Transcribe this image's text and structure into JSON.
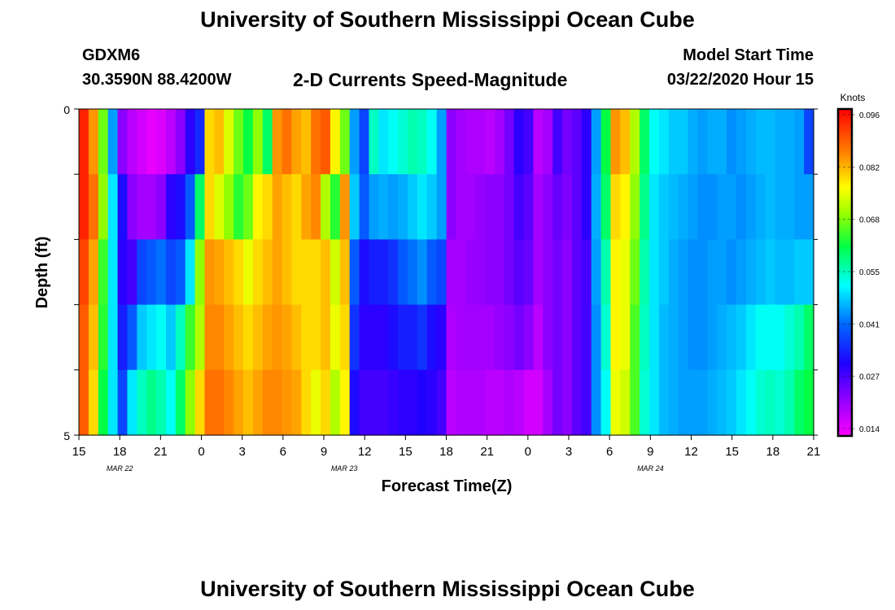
{
  "page": {
    "title_top": "University of Southern Mississippi Ocean Cube",
    "title_bottom": "University of Southern Mississippi Ocean Cube",
    "station": "GDXM6",
    "location": "30.3590N 88.4200W",
    "chart_title": "2-D Currents Speed-Magnitude",
    "model_start_label": "Model Start Time",
    "model_start_value": "03/22/2020 Hour 15"
  },
  "chart_data": {
    "type": "heatmap",
    "title": "2-D Currents Speed-Magnitude",
    "xlabel": "Forecast Time(Z)",
    "ylabel": "Depth (ft)",
    "x_ticks": [
      "15",
      "18",
      "21",
      "0",
      "3",
      "6",
      "9",
      "12",
      "15",
      "18",
      "21",
      "0",
      "3",
      "6",
      "9",
      "12",
      "15",
      "18",
      "21"
    ],
    "date_labels": [
      {
        "text": "MAR  22",
        "at_tick": 1
      },
      {
        "text": "MAR  23",
        "at_tick": 6.5
      },
      {
        "text": "MAR  24",
        "at_tick": 14
      }
    ],
    "y_ticks": [
      "0",
      "5"
    ],
    "ylim": [
      0,
      5
    ],
    "hours": 54,
    "depth_levels": [
      0,
      1,
      2,
      3,
      4,
      5
    ],
    "colorbar": {
      "label": "Knots",
      "ticks": [
        "0.096",
        "0.082",
        "0.068",
        "0.055",
        "0.041",
        "0.027",
        "0.014"
      ],
      "min": 0.012,
      "max": 0.098
    },
    "profile_by_depth": [
      {
        "depth": 0,
        "values": [
          0.095,
          0.085,
          0.068,
          0.045,
          0.022,
          0.018,
          0.016,
          0.014,
          0.015,
          0.018,
          0.022,
          0.03,
          0.035,
          0.08,
          0.082,
          0.075,
          0.068,
          0.062,
          0.07,
          0.06,
          0.085,
          0.088,
          0.084,
          0.082,
          0.088,
          0.09,
          0.078,
          0.068,
          0.045,
          0.038,
          0.055,
          0.05,
          0.052,
          0.054,
          0.056,
          0.055,
          0.052,
          0.045,
          0.022,
          0.02,
          0.019,
          0.019,
          0.018,
          0.02,
          0.024,
          0.03,
          0.028,
          0.018,
          0.02,
          0.028,
          0.024,
          0.026,
          0.03,
          0.045,
          0.062,
          0.085,
          0.082,
          0.072,
          0.06,
          0.052,
          0.05,
          0.048,
          0.048,
          0.046,
          0.045,
          0.046,
          0.046,
          0.044,
          0.045,
          0.046,
          0.047,
          0.047,
          0.046,
          0.046,
          0.045,
          0.038
        ]
      },
      {
        "depth": 1,
        "values": [
          0.095,
          0.088,
          0.07,
          0.05,
          0.032,
          0.022,
          0.02,
          0.02,
          0.022,
          0.03,
          0.032,
          0.04,
          0.06,
          0.08,
          0.075,
          0.07,
          0.064,
          0.068,
          0.078,
          0.08,
          0.084,
          0.082,
          0.08,
          0.084,
          0.086,
          0.072,
          0.064,
          0.085,
          0.048,
          0.04,
          0.045,
          0.046,
          0.045,
          0.046,
          0.048,
          0.05,
          0.048,
          0.045,
          0.022,
          0.02,
          0.02,
          0.021,
          0.022,
          0.022,
          0.024,
          0.028,
          0.026,
          0.02,
          0.022,
          0.025,
          0.023,
          0.026,
          0.03,
          0.046,
          0.06,
          0.08,
          0.078,
          0.07,
          0.058,
          0.05,
          0.048,
          0.047,
          0.046,
          0.045,
          0.044,
          0.044,
          0.045,
          0.045,
          0.044,
          0.045,
          0.046,
          0.047,
          0.046,
          0.046,
          0.045,
          0.045
        ]
      },
      {
        "depth": 2,
        "values": [
          0.092,
          0.084,
          0.065,
          0.05,
          0.03,
          0.028,
          0.038,
          0.04,
          0.042,
          0.038,
          0.04,
          0.05,
          0.07,
          0.085,
          0.084,
          0.082,
          0.08,
          0.076,
          0.08,
          0.082,
          0.084,
          0.082,
          0.08,
          0.08,
          0.08,
          0.082,
          0.074,
          0.082,
          0.04,
          0.032,
          0.034,
          0.034,
          0.036,
          0.04,
          0.042,
          0.044,
          0.04,
          0.038,
          0.02,
          0.02,
          0.021,
          0.021,
          0.022,
          0.022,
          0.024,
          0.026,
          0.025,
          0.02,
          0.022,
          0.024,
          0.022,
          0.026,
          0.028,
          0.045,
          0.056,
          0.078,
          0.076,
          0.068,
          0.056,
          0.05,
          0.048,
          0.046,
          0.045,
          0.044,
          0.044,
          0.045,
          0.045,
          0.044,
          0.045,
          0.046,
          0.047,
          0.048,
          0.047,
          0.047,
          0.048,
          0.048
        ]
      },
      {
        "depth": 3,
        "values": [
          0.09,
          0.082,
          0.064,
          0.05,
          0.034,
          0.04,
          0.048,
          0.05,
          0.052,
          0.048,
          0.055,
          0.065,
          0.072,
          0.086,
          0.086,
          0.084,
          0.082,
          0.08,
          0.082,
          0.084,
          0.085,
          0.084,
          0.082,
          0.08,
          0.08,
          0.082,
          0.076,
          0.08,
          0.036,
          0.03,
          0.03,
          0.03,
          0.032,
          0.034,
          0.034,
          0.036,
          0.032,
          0.03,
          0.019,
          0.02,
          0.02,
          0.02,
          0.02,
          0.021,
          0.022,
          0.024,
          0.022,
          0.018,
          0.022,
          0.024,
          0.022,
          0.026,
          0.028,
          0.044,
          0.054,
          0.078,
          0.076,
          0.066,
          0.055,
          0.05,
          0.047,
          0.046,
          0.045,
          0.044,
          0.044,
          0.045,
          0.046,
          0.047,
          0.048,
          0.05,
          0.052,
          0.052,
          0.052,
          0.054,
          0.056,
          0.06
        ]
      },
      {
        "depth": 4,
        "values": [
          0.09,
          0.08,
          0.062,
          0.05,
          0.038,
          0.05,
          0.055,
          0.058,
          0.056,
          0.052,
          0.06,
          0.07,
          0.08,
          0.088,
          0.088,
          0.086,
          0.084,
          0.082,
          0.084,
          0.086,
          0.086,
          0.085,
          0.084,
          0.08,
          0.076,
          0.08,
          0.072,
          0.078,
          0.032,
          0.028,
          0.028,
          0.028,
          0.029,
          0.03,
          0.03,
          0.031,
          0.03,
          0.028,
          0.018,
          0.019,
          0.019,
          0.019,
          0.018,
          0.018,
          0.019,
          0.018,
          0.016,
          0.016,
          0.02,
          0.024,
          0.022,
          0.026,
          0.028,
          0.044,
          0.052,
          0.076,
          0.074,
          0.066,
          0.054,
          0.05,
          0.047,
          0.046,
          0.045,
          0.045,
          0.045,
          0.046,
          0.047,
          0.048,
          0.05,
          0.052,
          0.054,
          0.055,
          0.054,
          0.056,
          0.06,
          0.062
        ]
      }
    ]
  }
}
